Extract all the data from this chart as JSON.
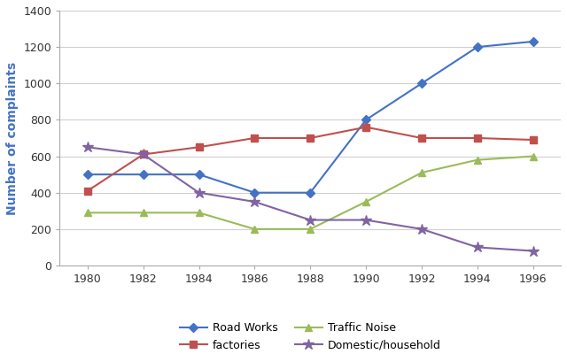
{
  "years": [
    1980,
    1982,
    1984,
    1986,
    1988,
    1990,
    1992,
    1994,
    1996
  ],
  "road_works": [
    500,
    500,
    500,
    400,
    400,
    800,
    1000,
    1200,
    1230
  ],
  "factories": [
    410,
    610,
    650,
    700,
    700,
    760,
    700,
    700,
    690
  ],
  "traffic_noise": [
    290,
    290,
    290,
    200,
    200,
    350,
    510,
    580,
    600
  ],
  "domestic_household": [
    650,
    610,
    400,
    350,
    250,
    250,
    200,
    100,
    80
  ],
  "road_works_color": "#4472C4",
  "factories_color": "#C0504D",
  "traffic_noise_color": "#9BBB59",
  "domestic_color": "#8064A2",
  "road_works_label": "Road Works",
  "factories_label": "factories",
  "traffic_noise_label": "Traffic Noise",
  "domestic_label": "Domestic/household",
  "ylabel": "Number of complaints",
  "ylabel_color": "#4472C4",
  "ylim": [
    0,
    1400
  ],
  "yticks": [
    0,
    200,
    400,
    600,
    800,
    1000,
    1200,
    1400
  ],
  "xlim": [
    1979,
    1997
  ],
  "xticks": [
    1980,
    1982,
    1984,
    1986,
    1988,
    1990,
    1992,
    1994,
    1996
  ],
  "background_color": "#ffffff",
  "grid_color": "#d0d0d0"
}
